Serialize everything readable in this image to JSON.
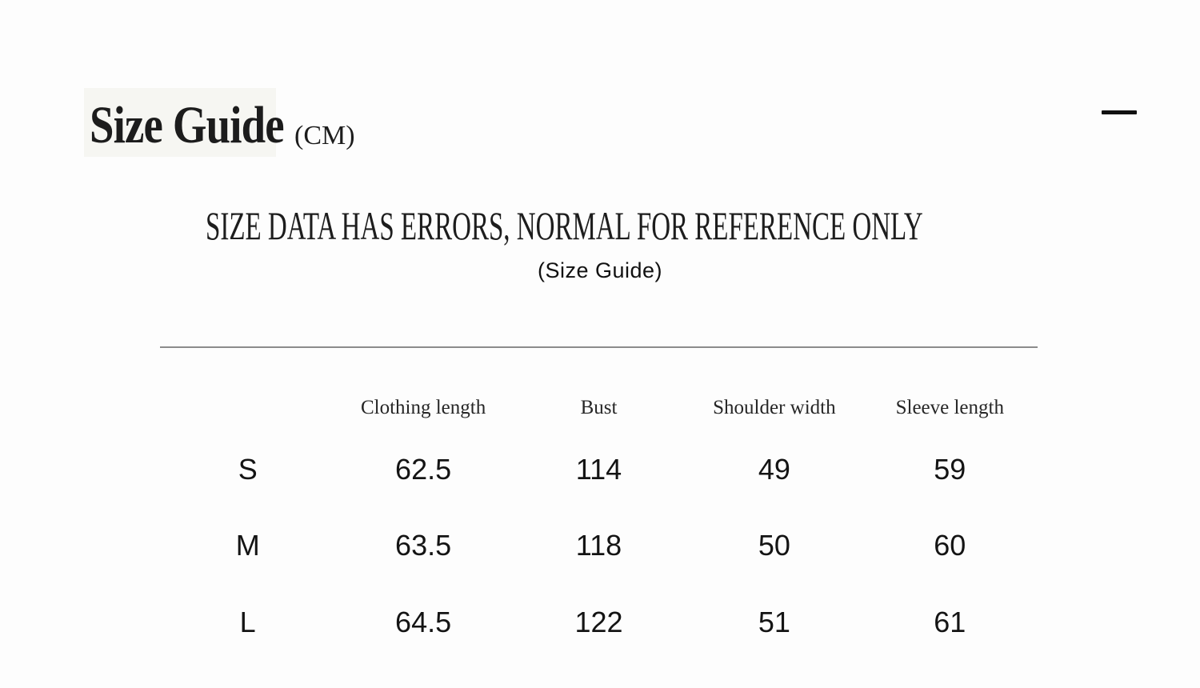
{
  "page": {
    "title": "Size Guide",
    "title_unit": "(CM)",
    "disclaimer": "SIZE DATA HAS ERRORS, NORMAL FOR REFERENCE ONLY",
    "subtitle": "(Size Guide)"
  },
  "icons": {
    "minimize": "minus-dash"
  },
  "colors": {
    "background": "#fdfdfd",
    "text": "#1a1a1a",
    "rule_line": "#8b8b8b",
    "icon": "#111111"
  },
  "size_table": {
    "unit": "CM",
    "columns": [
      "Clothing length",
      "Bust",
      "Shoulder width",
      "Sleeve length"
    ],
    "rows": [
      {
        "size": "S",
        "values": [
          "62.5",
          "114",
          "49",
          "59"
        ]
      },
      {
        "size": "M",
        "values": [
          "63.5",
          "118",
          "50",
          "60"
        ]
      },
      {
        "size": "L",
        "values": [
          "64.5",
          "122",
          "51",
          "61"
        ]
      }
    ]
  }
}
